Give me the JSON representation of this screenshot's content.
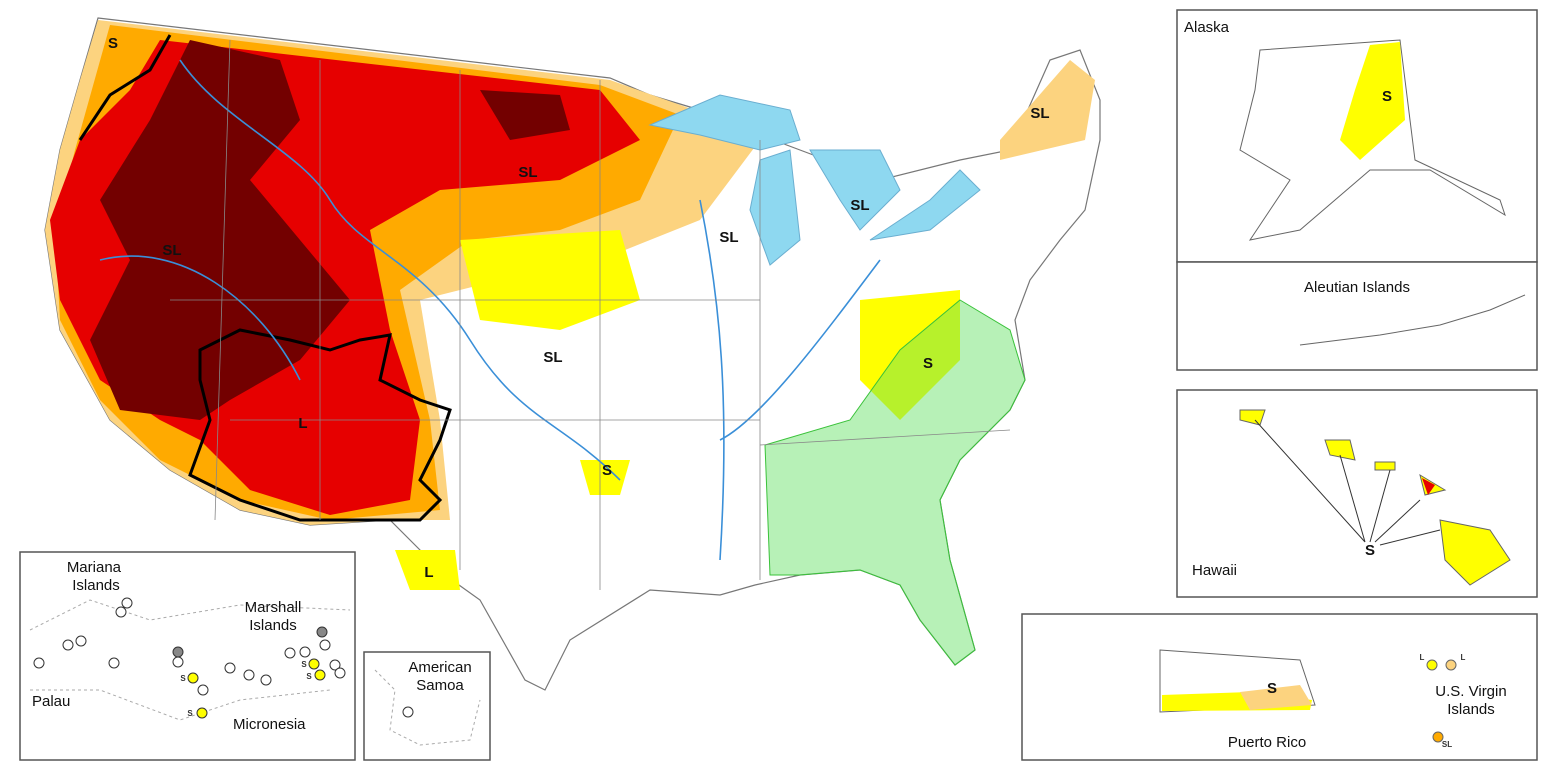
{
  "main_map": {
    "labels": [
      "S",
      "SL",
      "SL",
      "SL",
      "SL",
      "SL",
      "SL",
      "S",
      "L",
      "S",
      "L"
    ]
  },
  "insets": {
    "alaska": {
      "title": "Alaska",
      "labels": [
        "S"
      ]
    },
    "aleutian": {
      "title": "Aleutian Islands"
    },
    "hawaii": {
      "title": "Hawaii",
      "labels": [
        "S"
      ]
    },
    "puerto_rico": {
      "title": "Puerto Rico",
      "labels": [
        "S"
      ]
    },
    "virgin_islands": {
      "title": "U.S. Virgin Islands",
      "labels": [
        "L",
        "L",
        "SL"
      ]
    },
    "pacific": {
      "mariana": "Mariana Islands",
      "marshall": "Marshall Islands",
      "palau": "Palau",
      "micronesia": "Micronesia",
      "labels": [
        "S",
        "S",
        "S",
        "S"
      ]
    },
    "american_samoa": {
      "title": "American Samoa"
    }
  }
}
